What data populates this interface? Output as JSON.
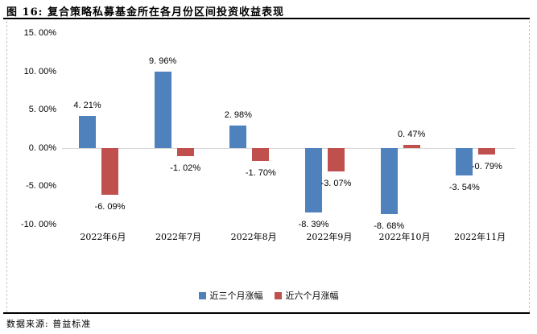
{
  "header": {
    "title": "图 16:  复合策略私募基金所在各月份区间投资收益表现"
  },
  "footer": {
    "source": "数据来源: 普益标准"
  },
  "colors": {
    "series_blue": "#4F81BD",
    "series_red": "#C0504D",
    "zero_axis_line": "#D9D9D9",
    "frame_dash": "#C6C6C6",
    "rule": "#000000",
    "text": "#000000"
  },
  "y_axis": {
    "ticks": [
      {
        "label": "15. 00%",
        "value": 15
      },
      {
        "label": "10. 00%",
        "value": 10
      },
      {
        "label": "5. 00%",
        "value": 5
      },
      {
        "label": "0. 00%",
        "value": 0
      },
      {
        "label": "-5. 00%",
        "value": -5
      },
      {
        "label": "-10. 00%",
        "value": -10
      }
    ]
  },
  "chart_data": {
    "type": "bar",
    "title": "图 16: 复合策略私募基金所在各月份区间投资收益表现",
    "categories": [
      "2022年6月",
      "2022年7月",
      "2022年8月",
      "2022年9月",
      "2022年10月",
      "2022年11月"
    ],
    "series": [
      {
        "name": "近三个月涨幅",
        "color": "#4F81BD",
        "values": [
          4.21,
          9.96,
          2.98,
          -8.39,
          -8.68,
          -3.54
        ],
        "labels": [
          "4. 21%",
          "9. 96%",
          "2. 98%",
          "-8. 39%",
          "-8. 68%",
          "-3. 54%"
        ]
      },
      {
        "name": "近六个月涨幅",
        "color": "#C0504D",
        "values": [
          -6.09,
          -1.02,
          -1.7,
          -3.07,
          0.47,
          -0.79
        ],
        "labels": [
          "-6. 09%",
          "-1. 02%",
          "-1. 70%",
          "-3. 07%",
          "0. 47%",
          "-0. 79%"
        ]
      }
    ],
    "ylim": [
      -10,
      15
    ],
    "ytick_step": 5,
    "grid": false,
    "legend_position": "bottom",
    "xlabel": "",
    "ylabel": ""
  }
}
